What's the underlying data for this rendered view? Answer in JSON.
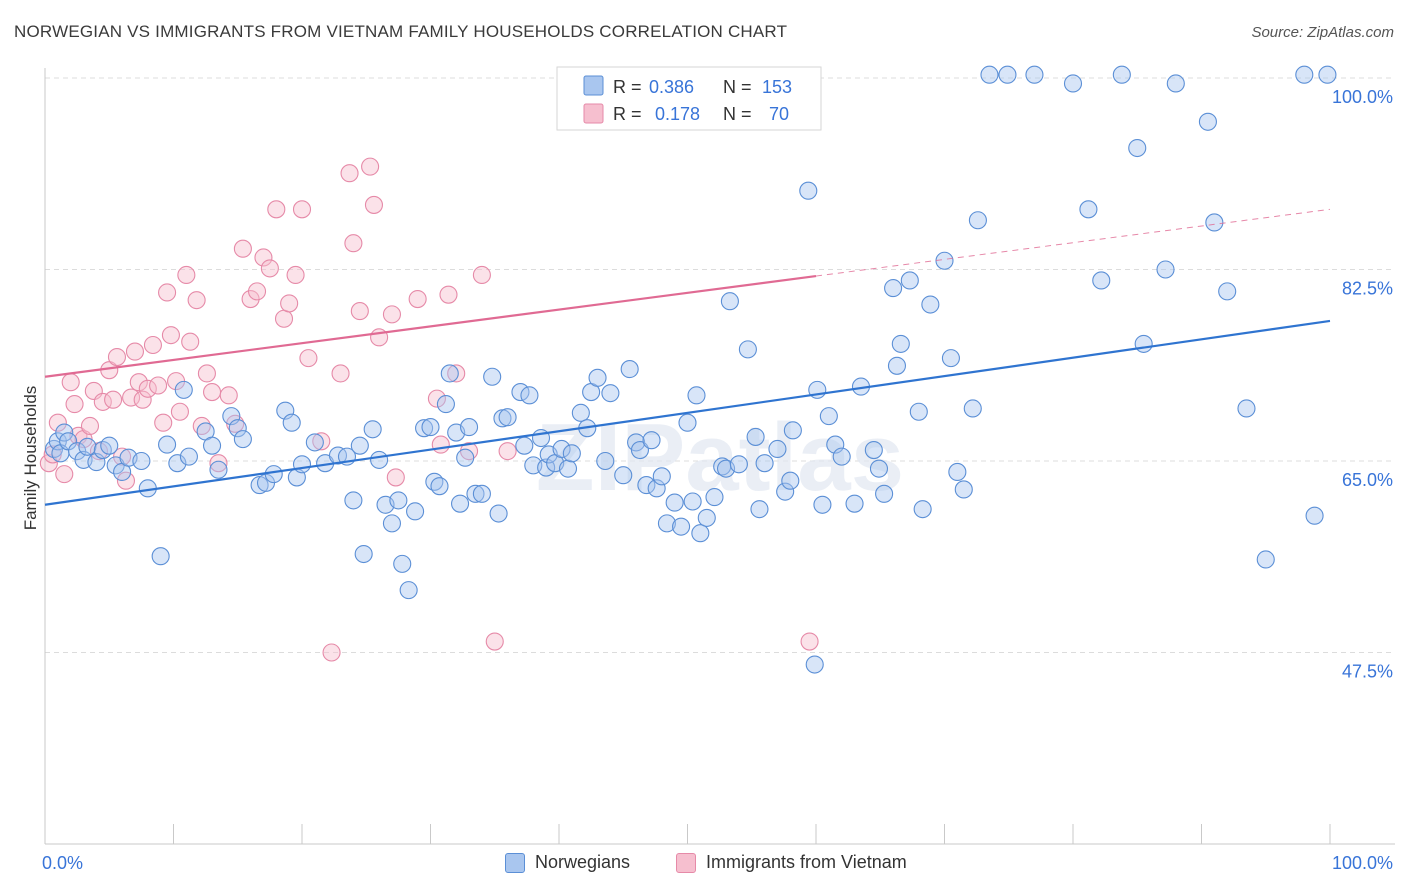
{
  "title": "NORWEGIAN VS IMMIGRANTS FROM VIETNAM FAMILY HOUSEHOLDS CORRELATION CHART",
  "source": "Source: ZipAtlas.com",
  "watermark": "ZIPatlas",
  "colors": {
    "blue_fill": "#a9c6ef",
    "blue_stroke": "#5b8fd6",
    "blue_line": "#2f74d0",
    "pink_fill": "#f6bfcf",
    "pink_stroke": "#e68aa8",
    "pink_line": "#e06a93",
    "value_text": "#3874d8",
    "grid": "#dcdcdc"
  },
  "legend_top": {
    "rows": [
      {
        "r_label": "R =",
        "r_value": "0.386",
        "n_label": "N =",
        "n_value": "153"
      },
      {
        "r_label": "R =",
        "r_value": "0.178",
        "n_label": "N =",
        "n_value": "70"
      }
    ]
  },
  "legend_bottom": {
    "items": [
      {
        "label": "Norwegians"
      },
      {
        "label": "Immigrants from Vietnam"
      }
    ]
  },
  "chart_data": {
    "type": "scatter",
    "title": "NORWEGIAN VS IMMIGRANTS FROM VIETNAM FAMILY HOUSEHOLDS CORRELATION CHART",
    "xlabel": "",
    "ylabel": "Family Households",
    "xlim": [
      0,
      100
    ],
    "ylim": [
      30,
      100
    ],
    "x_tick_labels": [
      "0.0%",
      "100.0%"
    ],
    "y_ticks": [
      47.5,
      65.0,
      82.5,
      100.0
    ],
    "y_tick_labels": [
      "47.5%",
      "65.0%",
      "82.5%",
      "100.0%"
    ],
    "grid": true,
    "legend_position": "top-center",
    "series": [
      {
        "name": "Norwegians",
        "r": 0.386,
        "n": 153,
        "trend": {
          "x0": 0,
          "y0": 61.0,
          "x1": 100,
          "y1": 77.8
        },
        "points": [
          [
            0.7,
            66.1
          ],
          [
            1.0,
            66.8
          ],
          [
            1.2,
            65.7
          ],
          [
            1.5,
            67.6
          ],
          [
            1.8,
            66.8
          ],
          [
            2.5,
            65.9
          ],
          [
            3.0,
            65.1
          ],
          [
            3.3,
            66.3
          ],
          [
            4.0,
            64.9
          ],
          [
            4.5,
            66.0
          ],
          [
            5.0,
            66.4
          ],
          [
            5.5,
            64.6
          ],
          [
            6.0,
            64.0
          ],
          [
            6.5,
            65.3
          ],
          [
            7.5,
            65.0
          ],
          [
            8.0,
            62.5
          ],
          [
            9.0,
            56.3
          ],
          [
            9.5,
            66.5
          ],
          [
            10.3,
            64.8
          ],
          [
            10.8,
            71.5
          ],
          [
            11.2,
            65.4
          ],
          [
            12.5,
            67.7
          ],
          [
            13.0,
            66.4
          ],
          [
            13.5,
            64.2
          ],
          [
            14.5,
            69.1
          ],
          [
            15.0,
            68.0
          ],
          [
            15.4,
            67.0
          ],
          [
            16.7,
            62.8
          ],
          [
            17.2,
            63.0
          ],
          [
            17.8,
            63.8
          ],
          [
            18.7,
            69.6
          ],
          [
            19.2,
            68.5
          ],
          [
            19.6,
            63.5
          ],
          [
            20.0,
            64.7
          ],
          [
            21.0,
            66.7
          ],
          [
            21.8,
            64.8
          ],
          [
            22.8,
            65.5
          ],
          [
            23.5,
            65.4
          ],
          [
            24.0,
            61.4
          ],
          [
            24.5,
            66.4
          ],
          [
            24.8,
            56.5
          ],
          [
            25.5,
            67.9
          ],
          [
            26.0,
            65.1
          ],
          [
            26.5,
            61.0
          ],
          [
            27.0,
            59.3
          ],
          [
            27.5,
            61.4
          ],
          [
            27.8,
            55.6
          ],
          [
            28.3,
            53.2
          ],
          [
            28.8,
            60.4
          ],
          [
            29.5,
            68.0
          ],
          [
            30.0,
            68.1
          ],
          [
            30.3,
            63.1
          ],
          [
            30.7,
            62.7
          ],
          [
            31.2,
            70.2
          ],
          [
            31.5,
            73.0
          ],
          [
            32.0,
            67.6
          ],
          [
            32.3,
            61.1
          ],
          [
            32.7,
            65.3
          ],
          [
            33.0,
            68.1
          ],
          [
            33.5,
            62.0
          ],
          [
            34.0,
            62.0
          ],
          [
            34.8,
            72.7
          ],
          [
            35.3,
            60.2
          ],
          [
            35.6,
            68.9
          ],
          [
            36.0,
            69.0
          ],
          [
            37.0,
            71.3
          ],
          [
            37.3,
            66.4
          ],
          [
            37.7,
            71.0
          ],
          [
            38.0,
            64.6
          ],
          [
            38.6,
            67.1
          ],
          [
            39.0,
            64.4
          ],
          [
            39.2,
            65.6
          ],
          [
            39.7,
            64.8
          ],
          [
            40.2,
            66.1
          ],
          [
            40.7,
            64.3
          ],
          [
            41.0,
            65.7
          ],
          [
            41.7,
            69.4
          ],
          [
            42.2,
            68.0
          ],
          [
            42.5,
            71.3
          ],
          [
            43.0,
            72.6
          ],
          [
            43.6,
            65.0
          ],
          [
            44.0,
            71.2
          ],
          [
            45.0,
            63.7
          ],
          [
            45.5,
            73.4
          ],
          [
            46.0,
            66.7
          ],
          [
            46.3,
            66.0
          ],
          [
            46.8,
            62.8
          ],
          [
            47.2,
            66.9
          ],
          [
            47.6,
            62.5
          ],
          [
            48.0,
            63.6
          ],
          [
            48.4,
            59.3
          ],
          [
            49.0,
            61.2
          ],
          [
            49.5,
            59.0
          ],
          [
            50.0,
            68.5
          ],
          [
            50.4,
            61.3
          ],
          [
            50.7,
            71.0
          ],
          [
            51.0,
            58.4
          ],
          [
            51.5,
            59.8
          ],
          [
            52.1,
            61.7
          ],
          [
            52.7,
            64.5
          ],
          [
            53.0,
            64.3
          ],
          [
            53.3,
            79.6
          ],
          [
            54.0,
            64.7
          ],
          [
            54.7,
            75.2
          ],
          [
            55.3,
            67.2
          ],
          [
            55.6,
            60.6
          ],
          [
            56.0,
            64.8
          ],
          [
            57.0,
            66.1
          ],
          [
            57.6,
            62.2
          ],
          [
            58.0,
            63.2
          ],
          [
            58.2,
            67.8
          ],
          [
            59.4,
            89.7
          ],
          [
            59.9,
            46.4
          ],
          [
            60.1,
            71.5
          ],
          [
            60.5,
            61.0
          ],
          [
            61.0,
            69.1
          ],
          [
            61.5,
            66.5
          ],
          [
            62.0,
            65.4
          ],
          [
            63.0,
            61.1
          ],
          [
            63.5,
            71.8
          ],
          [
            64.5,
            66.0
          ],
          [
            64.9,
            64.3
          ],
          [
            65.3,
            62.0
          ],
          [
            66.0,
            80.8
          ],
          [
            66.3,
            73.7
          ],
          [
            66.6,
            75.7
          ],
          [
            67.3,
            81.5
          ],
          [
            68.0,
            69.5
          ],
          [
            68.3,
            60.6
          ],
          [
            68.9,
            79.3
          ],
          [
            70.0,
            83.3
          ],
          [
            70.5,
            74.4
          ],
          [
            71.0,
            64.0
          ],
          [
            71.5,
            62.4
          ],
          [
            72.2,
            69.8
          ],
          [
            72.6,
            87.0
          ],
          [
            73.5,
            100.3
          ],
          [
            74.9,
            100.3
          ],
          [
            77.0,
            100.3
          ],
          [
            80.0,
            99.5
          ],
          [
            81.2,
            88.0
          ],
          [
            82.2,
            81.5
          ],
          [
            83.8,
            100.3
          ],
          [
            85.0,
            93.6
          ],
          [
            85.5,
            75.7
          ],
          [
            87.2,
            82.5
          ],
          [
            88.0,
            99.5
          ],
          [
            90.5,
            96.0
          ],
          [
            91.0,
            86.8
          ],
          [
            92.0,
            80.5
          ],
          [
            93.5,
            69.8
          ],
          [
            95.0,
            56.0
          ],
          [
            98.0,
            100.3
          ],
          [
            98.8,
            60.0
          ],
          [
            99.8,
            100.3
          ]
        ]
      },
      {
        "name": "Immigrants from Vietnam",
        "r": 0.178,
        "n": 70,
        "trend": {
          "x0": 0,
          "y0": 72.7,
          "x1": 60,
          "y1": 81.9,
          "dash_to_x": 100,
          "dash_to_y": 88.0
        },
        "points": [
          [
            0.3,
            64.8
          ],
          [
            0.6,
            65.6
          ],
          [
            1.0,
            68.5
          ],
          [
            1.5,
            63.8
          ],
          [
            2.0,
            72.2
          ],
          [
            2.3,
            70.2
          ],
          [
            2.6,
            67.3
          ],
          [
            3.0,
            67.0
          ],
          [
            3.5,
            68.2
          ],
          [
            3.8,
            71.4
          ],
          [
            4.2,
            65.9
          ],
          [
            4.5,
            70.4
          ],
          [
            5.0,
            73.3
          ],
          [
            5.3,
            70.6
          ],
          [
            5.6,
            74.5
          ],
          [
            6.0,
            65.4
          ],
          [
            6.3,
            63.2
          ],
          [
            6.7,
            70.8
          ],
          [
            7.0,
            75.0
          ],
          [
            7.3,
            72.2
          ],
          [
            7.6,
            70.6
          ],
          [
            8.0,
            71.6
          ],
          [
            8.4,
            75.6
          ],
          [
            8.8,
            71.9
          ],
          [
            9.2,
            68.5
          ],
          [
            9.5,
            80.4
          ],
          [
            9.8,
            76.5
          ],
          [
            10.2,
            72.3
          ],
          [
            10.5,
            69.5
          ],
          [
            11.0,
            82.0
          ],
          [
            11.3,
            75.9
          ],
          [
            11.8,
            79.7
          ],
          [
            12.2,
            68.2
          ],
          [
            12.6,
            73.0
          ],
          [
            13.0,
            71.3
          ],
          [
            13.5,
            64.8
          ],
          [
            14.3,
            71.0
          ],
          [
            14.8,
            68.4
          ],
          [
            15.4,
            84.4
          ],
          [
            16.0,
            79.8
          ],
          [
            16.5,
            80.5
          ],
          [
            17.0,
            83.6
          ],
          [
            17.5,
            82.6
          ],
          [
            18.0,
            88.0
          ],
          [
            18.6,
            78.0
          ],
          [
            19.0,
            79.4
          ],
          [
            19.5,
            82.0
          ],
          [
            20.0,
            88.0
          ],
          [
            20.5,
            74.4
          ],
          [
            21.5,
            66.8
          ],
          [
            22.3,
            47.5
          ],
          [
            23.0,
            73.0
          ],
          [
            23.7,
            91.3
          ],
          [
            24.0,
            84.9
          ],
          [
            24.5,
            78.7
          ],
          [
            25.3,
            91.9
          ],
          [
            25.6,
            88.4
          ],
          [
            26.0,
            76.3
          ],
          [
            27.0,
            78.4
          ],
          [
            27.3,
            63.5
          ],
          [
            29.0,
            79.8
          ],
          [
            30.5,
            70.7
          ],
          [
            30.8,
            66.5
          ],
          [
            31.4,
            80.2
          ],
          [
            32.0,
            73.0
          ],
          [
            33.0,
            65.9
          ],
          [
            34.0,
            82.0
          ],
          [
            35.0,
            48.5
          ],
          [
            36.0,
            65.9
          ],
          [
            59.5,
            48.5
          ]
        ]
      }
    ]
  }
}
